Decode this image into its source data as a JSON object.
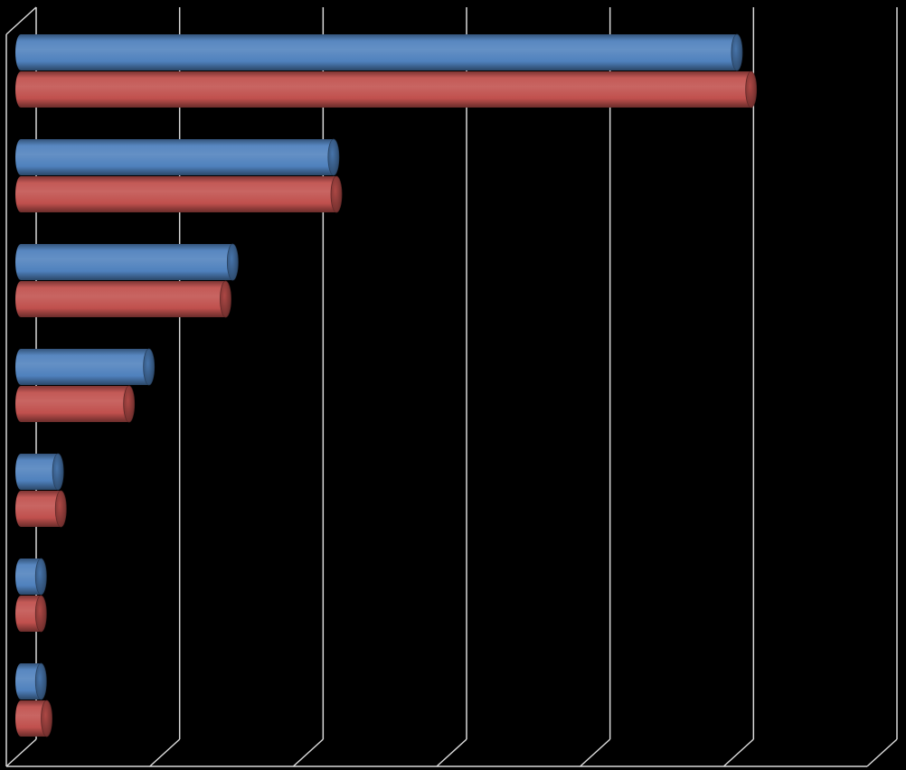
{
  "chart_data": {
    "type": "bar",
    "orientation": "horizontal",
    "style": "3d-cylinder",
    "background": "#000000",
    "gridline_color": "#d9d9d9",
    "title": "",
    "xlabel": "",
    "ylabel": "",
    "xlim": [
      0,
      6
    ],
    "grid": true,
    "legend": "none",
    "categories": [
      "",
      "",
      "",
      "",
      "",
      "",
      ""
    ],
    "series": [
      {
        "color": "#4f81bd",
        "values": [
          5.08,
          2.24,
          1.53,
          0.94,
          0.3,
          0.18,
          0.18
        ]
      },
      {
        "color": "#c0504d",
        "values": [
          5.18,
          2.26,
          1.48,
          0.8,
          0.32,
          0.18,
          0.22
        ]
      }
    ]
  }
}
